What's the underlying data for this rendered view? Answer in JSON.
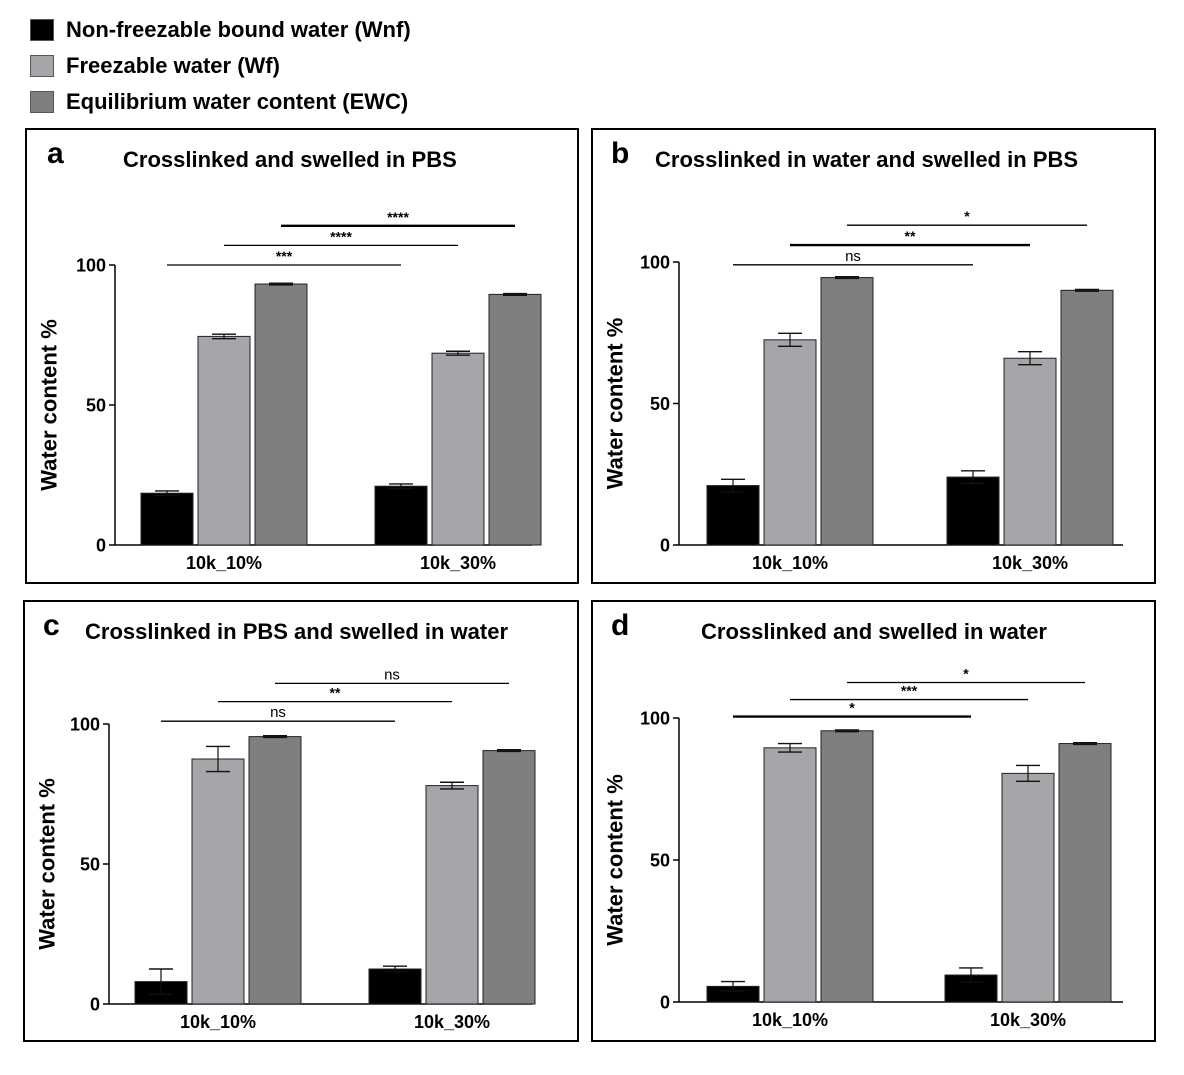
{
  "legend": {
    "items": [
      {
        "label": "Non-freezable bound water (Wnf)",
        "color": "#000000"
      },
      {
        "label": "Freezable water (Wf)",
        "color": "#a6a6aa"
      },
      {
        "label": "Equilibrium water content (EWC)",
        "color": "#7f7f7f"
      }
    ]
  },
  "chart_data": [
    {
      "type": "bar",
      "letter": "a",
      "title": "Crosslinked and swelled in PBS",
      "ylabel": "Water content %",
      "ylim": [
        0,
        100
      ],
      "yticks": [
        "0",
        "50",
        "100"
      ],
      "categories": [
        "10k_10%",
        "10k_30%"
      ],
      "series": [
        {
          "name": "Non-freezable bound water (Wnf)",
          "values": [
            18.5,
            21
          ],
          "errors": [
            0.8,
            0.8
          ]
        },
        {
          "name": "Freezable water (Wf)",
          "values": [
            74.5,
            68.5
          ],
          "errors": [
            0.8,
            0.7
          ]
        },
        {
          "name": "Equilibrium water content (EWC)",
          "values": [
            93.2,
            89.5
          ],
          "errors": [
            0.3,
            0.3
          ]
        }
      ],
      "significance": [
        {
          "label": "***",
          "from": [
            0,
            0
          ],
          "to": [
            1,
            0
          ],
          "y": 100,
          "bold": false
        },
        {
          "label": "****",
          "from": [
            0,
            1
          ],
          "to": [
            1,
            1
          ],
          "y": 107,
          "bold": false
        },
        {
          "label": "****",
          "from": [
            0,
            2
          ],
          "to": [
            1,
            2
          ],
          "y": 114,
          "bold": true
        }
      ]
    },
    {
      "type": "bar",
      "letter": "b",
      "title": "Crosslinked in water and swelled in PBS",
      "ylabel": "Water content %",
      "ylim": [
        0,
        100
      ],
      "yticks": [
        "0",
        "50",
        "100"
      ],
      "categories": [
        "10k_10%",
        "10k_30%"
      ],
      "series": [
        {
          "name": "Non-freezable bound water (Wnf)",
          "values": [
            21,
            24
          ],
          "errors": [
            2.2,
            2.2
          ]
        },
        {
          "name": "Freezable water (Wf)",
          "values": [
            72.5,
            66
          ],
          "errors": [
            2.3,
            2.3
          ]
        },
        {
          "name": "Equilibrium water content (EWC)",
          "values": [
            94.5,
            90
          ],
          "errors": [
            0.3,
            0.3
          ]
        }
      ],
      "significance": [
        {
          "label": "ns",
          "from": [
            0,
            0
          ],
          "to": [
            1,
            0
          ],
          "y": 99,
          "bold": false
        },
        {
          "label": "**",
          "from": [
            0,
            1
          ],
          "to": [
            1,
            1
          ],
          "y": 106,
          "bold": true
        },
        {
          "label": "*",
          "from": [
            0,
            2
          ],
          "to": [
            1,
            2
          ],
          "y": 113,
          "bold": false
        }
      ]
    },
    {
      "type": "bar",
      "letter": "c",
      "title": "Crosslinked in PBS and swelled in water",
      "ylabel": "Water content %",
      "ylim": [
        0,
        100
      ],
      "yticks": [
        "0",
        "50",
        "100"
      ],
      "categories": [
        "10k_10%",
        "10k_30%"
      ],
      "series": [
        {
          "name": "Non-freezable bound water (Wnf)",
          "values": [
            8,
            12.5
          ],
          "errors": [
            4.5,
            1
          ]
        },
        {
          "name": "Freezable water (Wf)",
          "values": [
            87.5,
            78
          ],
          "errors": [
            4.5,
            1.2
          ]
        },
        {
          "name": "Equilibrium water content (EWC)",
          "values": [
            95.5,
            90.5
          ],
          "errors": [
            0.3,
            0.3
          ]
        }
      ],
      "significance": [
        {
          "label": "ns",
          "from": [
            0,
            0
          ],
          "to": [
            1,
            0
          ],
          "y": 101,
          "bold": false
        },
        {
          "label": "**",
          "from": [
            0,
            1
          ],
          "to": [
            1,
            1
          ],
          "y": 108,
          "bold": false
        },
        {
          "label": "ns",
          "from": [
            0,
            2
          ],
          "to": [
            1,
            2
          ],
          "y": 114.5,
          "bold": false
        }
      ]
    },
    {
      "type": "bar",
      "letter": "d",
      "title": "Crosslinked and swelled in water",
      "ylabel": "Water content %",
      "ylim": [
        0,
        100
      ],
      "yticks": [
        "0",
        "50",
        "100"
      ],
      "categories": [
        "10k_10%",
        "10k_30%"
      ],
      "series": [
        {
          "name": "Non-freezable bound water (Wnf)",
          "values": [
            5.5,
            9.5
          ],
          "errors": [
            1.7,
            2.5
          ]
        },
        {
          "name": "Freezable water (Wf)",
          "values": [
            89.5,
            80.5
          ],
          "errors": [
            1.5,
            2.8
          ]
        },
        {
          "name": "Equilibrium water content (EWC)",
          "values": [
            95.5,
            91
          ],
          "errors": [
            0.3,
            0.3
          ]
        }
      ],
      "significance": [
        {
          "label": "*",
          "from": [
            0,
            0
          ],
          "to": [
            1,
            0
          ],
          "y": 100.5,
          "bold": true
        },
        {
          "label": "***",
          "from": [
            0,
            1
          ],
          "to": [
            1,
            1
          ],
          "y": 106.5,
          "bold": false
        },
        {
          "label": "*",
          "from": [
            0,
            2
          ],
          "to": [
            1,
            2
          ],
          "y": 112.5,
          "bold": false
        }
      ]
    }
  ]
}
